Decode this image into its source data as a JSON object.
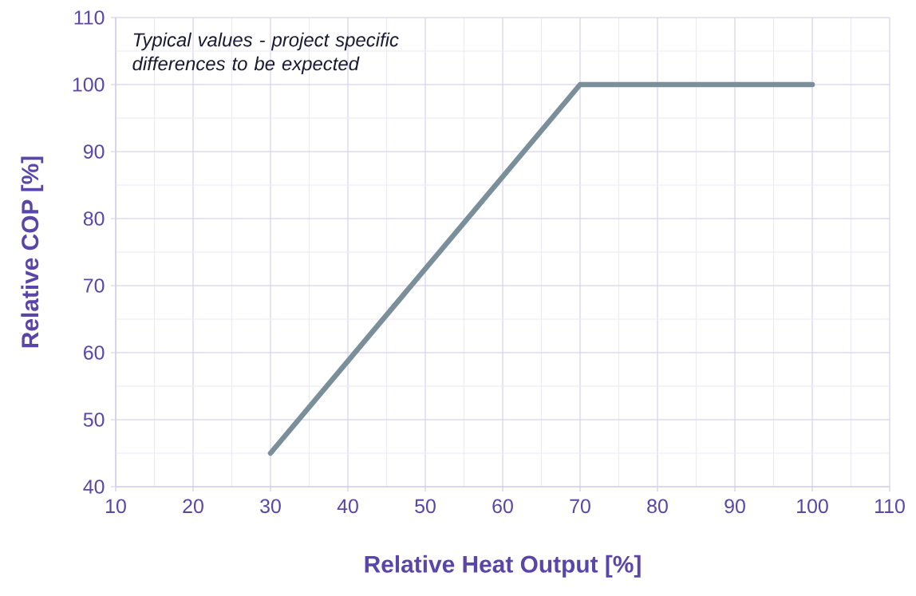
{
  "chart_data": {
    "type": "line",
    "xlabel": "Relative Heat Output [%]",
    "ylabel": "Relative COP [%]",
    "annotations": [
      "Typical values - project specific differences to be expected"
    ],
    "x": [
      30,
      70,
      100
    ],
    "series": [
      {
        "color": "#7a8f9a",
        "values": [
          45,
          100,
          100
        ]
      }
    ],
    "xlim": [
      10,
      110
    ],
    "xticks": [
      10,
      20,
      30,
      40,
      50,
      60,
      70,
      80,
      90,
      100,
      110
    ],
    "ylim": [
      40,
      110
    ],
    "yticks": [
      40,
      50,
      60,
      70,
      80,
      90,
      100,
      110
    ],
    "grid": true,
    "marker": "none",
    "line_style": "solid"
  }
}
